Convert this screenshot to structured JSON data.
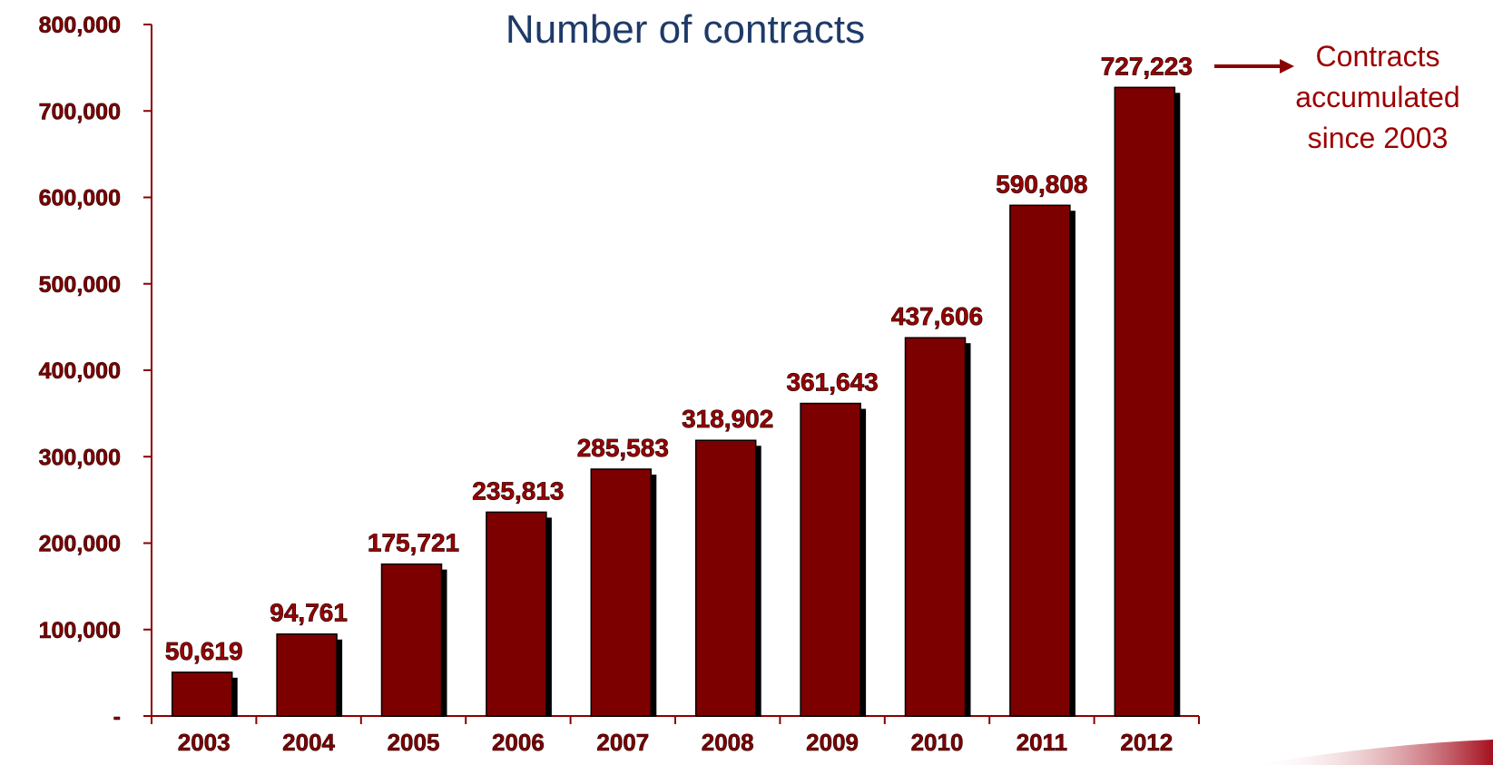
{
  "chart_data": {
    "type": "bar",
    "title": "Number of contracts",
    "categories": [
      "2003",
      "2004",
      "2005",
      "2006",
      "2007",
      "2008",
      "2009",
      "2010",
      "2011",
      "2012"
    ],
    "values": [
      50619,
      94761,
      175721,
      235813,
      285583,
      318902,
      361643,
      437606,
      590808,
      727223
    ],
    "data_labels": [
      "50,619",
      "94,761",
      "175,721",
      "235,813",
      "285,583",
      "318,902",
      "361,643",
      "437,606",
      "590,808",
      "727,223"
    ],
    "ylim": [
      0,
      800000
    ],
    "yticks": [
      0,
      100000,
      200000,
      300000,
      400000,
      500000,
      600000,
      700000,
      800000
    ],
    "ytick_labels": [
      "-",
      "100,000",
      "200,000",
      "300,000",
      "400,000",
      "500,000",
      "600,000",
      "700,000",
      "800,000"
    ],
    "xlabel": "",
    "ylabel": "",
    "grid": false,
    "annotation": {
      "lines": [
        "Contracts",
        "accumulated",
        "since 2003"
      ],
      "points_to": "2012"
    },
    "colors": {
      "bar": "#7d0000",
      "bar_shadow": "#000000",
      "axis": "#8b0000",
      "title": "#1f3a68",
      "labels": "#9b0000"
    }
  }
}
